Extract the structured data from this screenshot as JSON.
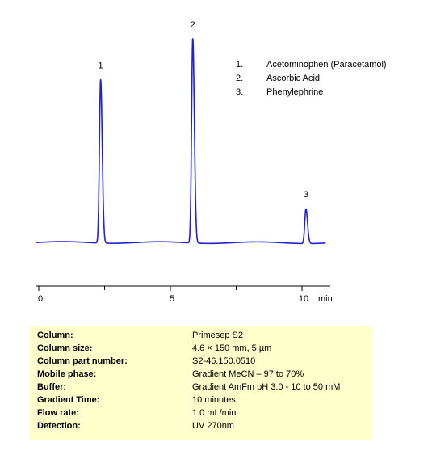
{
  "chart_data": {
    "type": "line",
    "xlabel": "min",
    "xlim": [
      0,
      11
    ],
    "x_ticks": [
      {
        "value": 0,
        "label": "0"
      },
      {
        "value": 5,
        "label": "5"
      },
      {
        "value": 10,
        "label": "10"
      }
    ],
    "x_minor_ticks": [
      2.5,
      7.5
    ],
    "series_color": "#1f1fd6",
    "baseline": 0,
    "peaks": [
      {
        "label": "1",
        "rt": 2.35,
        "height": 0.8
      },
      {
        "label": "2",
        "rt": 5.85,
        "height": 1.0
      },
      {
        "label": "3",
        "rt": 10.15,
        "height": 0.17
      }
    ],
    "legend": [
      {
        "num": "1.",
        "name": "Acetominophen (Paracetamol)"
      },
      {
        "num": "2.",
        "name": "Ascorbic Acid"
      },
      {
        "num": "3.",
        "name": "Phenylephrine"
      }
    ]
  },
  "conditions": [
    {
      "label": "Column:",
      "value": "Primesep  S2"
    },
    {
      "label": "Column size:",
      "value": "4.6 × 150 mm,  5 µm"
    },
    {
      "label": "Column part number:",
      "value": "S2-46.150.0510"
    },
    {
      "label": "Mobile phase:",
      "value": "Gradient MeCN – 97 to 70%"
    },
    {
      "label": "Buffer:",
      "value": "Gradient AmFm  pH 3.0 - 10 to 50 mM"
    },
    {
      "label": "Gradient Time:",
      "value": "10 minutes"
    },
    {
      "label": "Flow rate:",
      "value": "1.0 mL/min"
    },
    {
      "label": "Detection:",
      "value": "UV 270nm"
    }
  ],
  "colors": {
    "panel_background": "#ffffcc",
    "trace": "#1f1fd6"
  }
}
